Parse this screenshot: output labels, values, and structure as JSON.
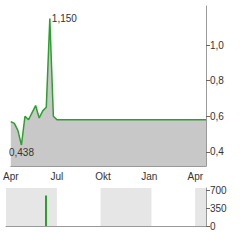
{
  "chart_data": [
    {
      "type": "line",
      "color": "#2ca02c",
      "grid": false,
      "categories": [
        "Apr",
        null,
        null,
        null,
        null,
        null,
        null,
        null,
        null,
        null,
        null,
        null,
        null,
        "Jul",
        null,
        null,
        null,
        null,
        null,
        null,
        null,
        null,
        null,
        null,
        null,
        null,
        "Okt",
        null,
        null,
        null,
        null,
        null,
        null,
        null,
        null,
        null,
        null,
        null,
        null,
        "Jan",
        null,
        null,
        null,
        null,
        null,
        null,
        null,
        null,
        null,
        null,
        null,
        null,
        "Apr",
        null,
        null,
        null
      ],
      "values": [
        0.57,
        0.56,
        0.52,
        0.438,
        0.6,
        0.58,
        0.62,
        0.66,
        0.59,
        0.63,
        0.65,
        1.15,
        0.6,
        0.58,
        0.58,
        0.58,
        0.58,
        0.58,
        0.58,
        0.58,
        0.58,
        0.58,
        0.58,
        0.58,
        0.58,
        0.58,
        0.58,
        0.58,
        0.58,
        0.58,
        0.58,
        0.58,
        0.58,
        0.58,
        0.58,
        0.58,
        0.58,
        0.58,
        0.58,
        0.58,
        0.58,
        0.58,
        0.58,
        0.58,
        0.58,
        0.58,
        0.58,
        0.58,
        0.58,
        0.58,
        0.58,
        0.58,
        0.58,
        0.58,
        0.58,
        0.58
      ],
      "ylim": [
        0.32,
        1.22
      ],
      "yticks": [
        {
          "value": 0.4,
          "label": "0,4"
        },
        {
          "value": 0.6,
          "label": "0,6"
        },
        {
          "value": 0.8,
          "label": "0,8"
        },
        {
          "value": 1.0,
          "label": "1,0"
        }
      ],
      "annotations": [
        {
          "label": "1,150",
          "value": 1.15,
          "index": 11
        },
        {
          "label": "0,438",
          "value": 0.438,
          "index": 3
        }
      ]
    },
    {
      "type": "bar",
      "color": "#2ca02c",
      "grid": false,
      "tick_labels": "y",
      "categories": [
        null,
        null,
        null,
        null,
        null,
        null,
        null,
        null,
        null,
        null,
        null,
        null,
        null,
        null,
        null,
        null,
        null,
        null,
        null,
        null,
        null,
        null,
        null,
        null,
        null,
        null,
        null,
        null,
        null,
        null,
        null,
        null,
        null,
        null,
        null,
        null,
        null,
        null,
        null,
        null,
        null,
        null,
        null,
        null,
        null,
        null,
        null,
        null,
        null,
        null,
        null,
        null,
        null,
        null,
        null,
        null
      ],
      "values": [
        0,
        0,
        0,
        0,
        0,
        0,
        0,
        0,
        0,
        0,
        0,
        600,
        0,
        0,
        0,
        0,
        0,
        0,
        0,
        0,
        0,
        0,
        0,
        0,
        0,
        0,
        0,
        0,
        0,
        0,
        0,
        0,
        0,
        0,
        0,
        0,
        0,
        0,
        0,
        0,
        0,
        0,
        0,
        0,
        0,
        0,
        0,
        0,
        0,
        0,
        0,
        0,
        0,
        0,
        0,
        0
      ],
      "ylim": [
        0,
        750
      ],
      "yticks": [
        0,
        350,
        700
      ]
    }
  ]
}
